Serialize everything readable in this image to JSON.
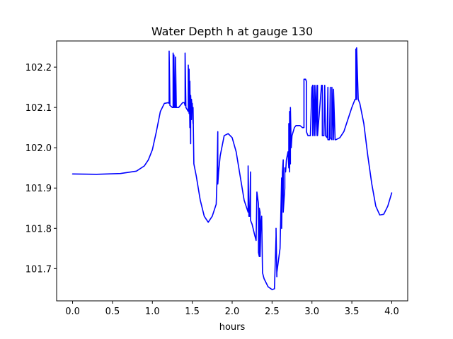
{
  "chart_data": {
    "type": "line",
    "title": "Water Depth h at gauge 130",
    "xlabel": "hours",
    "ylabel": "",
    "xlim": [
      -0.2,
      4.2
    ],
    "ylim": [
      101.62,
      102.265
    ],
    "xticks": [
      0.0,
      0.5,
      1.0,
      1.5,
      2.0,
      2.5,
      3.0,
      3.5,
      4.0
    ],
    "xtick_labels": [
      "0.0",
      "0.5",
      "1.0",
      "1.5",
      "2.0",
      "2.5",
      "3.0",
      "3.5",
      "4.0"
    ],
    "yticks": [
      101.7,
      101.8,
      101.9,
      102.0,
      102.1,
      102.2
    ],
    "ytick_labels": [
      "101.7",
      "101.8",
      "101.9",
      "102.0",
      "102.1",
      "102.2"
    ],
    "grid": false,
    "series": [
      {
        "color": "#0000ff",
        "x": [
          0.0,
          0.3,
          0.6,
          0.8,
          0.9,
          0.95,
          1.0,
          1.05,
          1.1,
          1.15,
          1.2,
          1.21,
          1.21,
          1.22,
          1.22,
          1.25,
          1.26,
          1.26,
          1.27,
          1.27,
          1.28,
          1.29,
          1.29,
          1.3,
          1.3,
          1.33,
          1.38,
          1.4,
          1.41,
          1.41,
          1.42,
          1.42,
          1.45,
          1.45,
          1.46,
          1.46,
          1.47,
          1.47,
          1.48,
          1.48,
          1.49,
          1.49,
          1.5,
          1.5,
          1.51,
          1.51,
          1.52,
          1.55,
          1.6,
          1.65,
          1.7,
          1.75,
          1.8,
          1.81,
          1.82,
          1.82,
          1.83,
          1.85,
          1.9,
          1.95,
          2.0,
          2.05,
          2.1,
          2.15,
          2.2,
          2.2,
          2.21,
          2.22,
          2.23,
          2.23,
          2.24,
          2.25,
          2.28,
          2.3,
          2.31,
          2.33,
          2.33,
          2.34,
          2.34,
          2.35,
          2.35,
          2.36,
          2.37,
          2.38,
          2.38,
          2.4,
          2.45,
          2.5,
          2.53,
          2.55,
          2.55,
          2.56,
          2.56,
          2.6,
          2.62,
          2.62,
          2.63,
          2.64,
          2.64,
          2.65,
          2.66,
          2.66,
          2.67,
          2.68,
          2.7,
          2.71,
          2.71,
          2.72,
          2.72,
          2.73,
          2.73,
          2.74,
          2.75,
          2.78,
          2.8,
          2.85,
          2.88,
          2.9,
          2.9,
          2.92,
          2.93,
          2.93,
          2.95,
          2.98,
          3.0,
          3.01,
          3.01,
          3.03,
          3.03,
          3.05,
          3.05,
          3.07,
          3.07,
          3.12,
          3.13,
          3.13,
          3.15,
          3.16,
          3.17,
          3.17,
          3.19,
          3.2,
          3.2,
          3.22,
          3.23,
          3.23,
          3.25,
          3.25,
          3.27,
          3.27,
          3.29,
          3.3,
          3.35,
          3.4,
          3.45,
          3.5,
          3.54,
          3.55,
          3.55,
          3.56,
          3.56,
          3.58,
          3.6,
          3.65,
          3.7,
          3.75,
          3.8,
          3.85,
          3.9,
          3.95,
          4.0
        ],
        "y": [
          101.935,
          101.934,
          101.936,
          101.942,
          101.955,
          101.97,
          101.995,
          102.04,
          102.09,
          102.11,
          102.112,
          102.11,
          102.24,
          102.11,
          102.105,
          102.1,
          102.1,
          102.235,
          102.1,
          102.23,
          102.1,
          102.1,
          102.225,
          102.1,
          102.1,
          102.1,
          102.112,
          102.112,
          102.105,
          102.235,
          102.105,
          102.1,
          102.09,
          102.205,
          102.085,
          102.195,
          102.05,
          102.165,
          102.01,
          102.13,
          102.07,
          102.12,
          102.09,
          102.11,
          102.06,
          102.1,
          101.96,
          101.93,
          101.87,
          101.83,
          101.815,
          101.83,
          101.86,
          101.92,
          102.04,
          101.91,
          101.94,
          101.98,
          102.03,
          102.035,
          102.025,
          101.99,
          101.93,
          101.87,
          101.84,
          101.955,
          101.83,
          101.83,
          101.94,
          101.82,
          101.815,
          101.81,
          101.785,
          101.77,
          101.89,
          101.86,
          101.74,
          101.73,
          101.85,
          101.84,
          101.73,
          101.81,
          101.83,
          101.695,
          101.69,
          101.675,
          101.655,
          101.648,
          101.65,
          101.78,
          101.8,
          101.68,
          101.69,
          101.75,
          101.925,
          101.8,
          101.94,
          101.97,
          101.84,
          101.87,
          101.9,
          101.95,
          101.94,
          101.97,
          101.99,
          101.95,
          102.06,
          101.94,
          102.09,
          101.96,
          102.1,
          102.0,
          102.03,
          102.05,
          102.055,
          102.055,
          102.05,
          102.05,
          102.17,
          102.17,
          102.165,
          102.04,
          102.03,
          102.03,
          102.15,
          102.155,
          102.03,
          102.155,
          102.03,
          102.155,
          102.03,
          102.155,
          102.03,
          102.155,
          102.155,
          102.03,
          102.03,
          102.155,
          102.03,
          102.03,
          102.025,
          102.15,
          102.02,
          102.02,
          102.15,
          102.025,
          102.02,
          102.15,
          102.02,
          102.145,
          102.02,
          102.02,
          102.025,
          102.04,
          102.07,
          102.1,
          102.12,
          102.12,
          102.245,
          102.12,
          102.248,
          102.12,
          102.11,
          102.06,
          101.98,
          101.91,
          101.855,
          101.833,
          101.835,
          101.855,
          101.888
        ]
      }
    ]
  }
}
